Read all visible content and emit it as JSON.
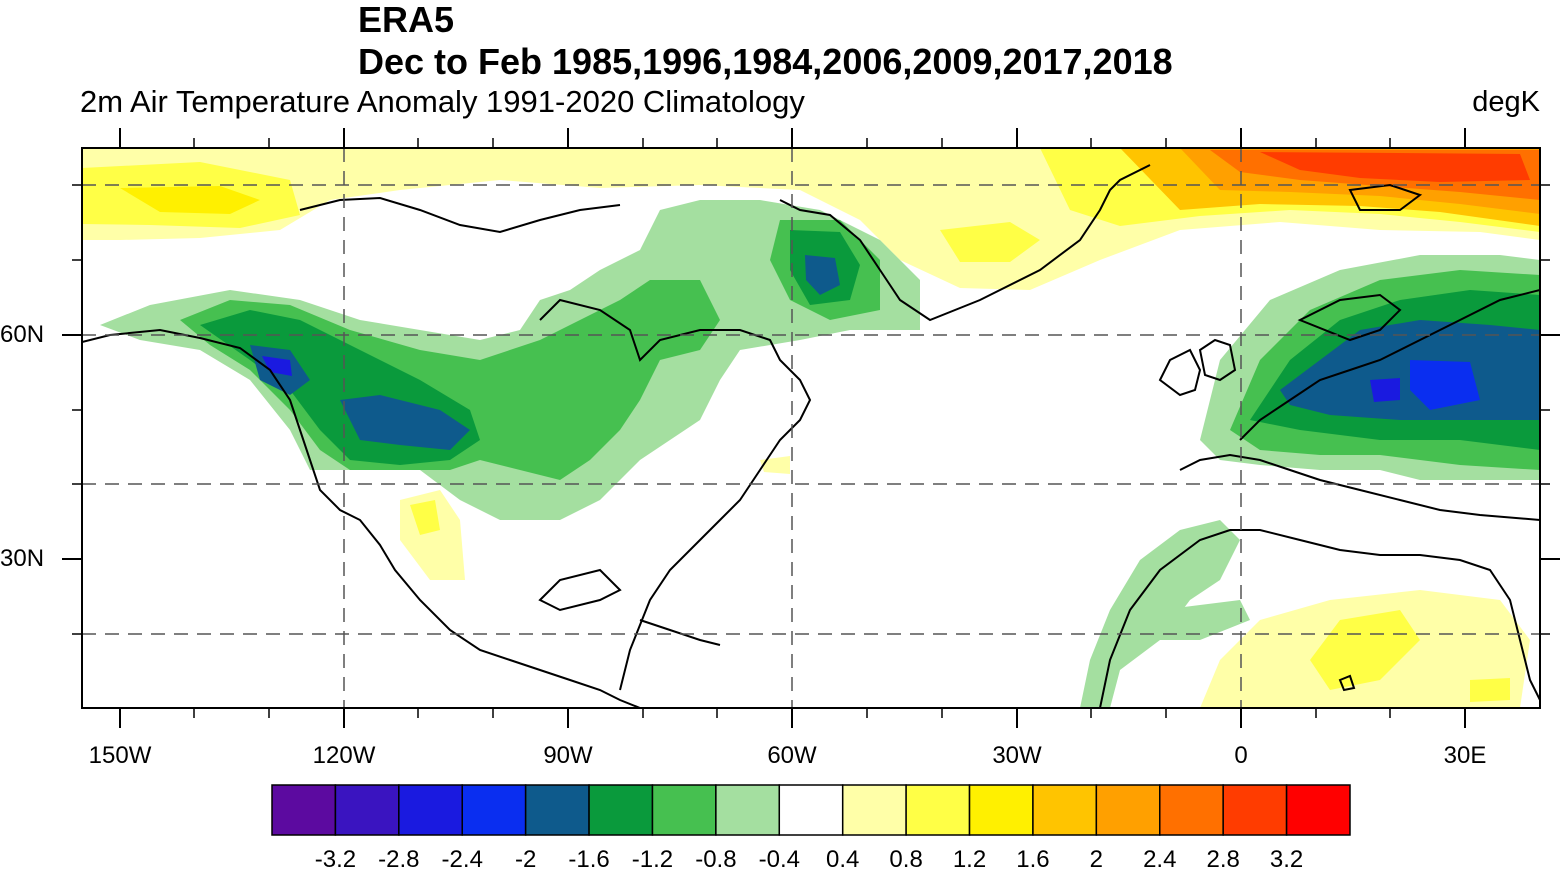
{
  "header": {
    "title_line1": "ERA5",
    "title_line2": "Dec to Feb 1985,1996,1984,2006,2009,2017,2018",
    "left_subtitle": "2m Air Temperature Anomaly  1991-2020 Climatology",
    "right_subtitle": "degK"
  },
  "map": {
    "longitude_labels": [
      "150W",
      "120W",
      "90W",
      "60W",
      "30W",
      "0",
      "30E"
    ],
    "latitude_labels": [
      "60N",
      "30N"
    ],
    "projection": "cylindrical equidistant",
    "gridlines": "dashed",
    "coastlines": true
  },
  "colorbar": {
    "labels": [
      "-3.2",
      "-2.8",
      "-2.4",
      "-2",
      "-1.6",
      "-1.2",
      "-0.8",
      "-0.4",
      "0.4",
      "0.8",
      "1.2",
      "1.6",
      "2",
      "2.4",
      "2.8",
      "3.2"
    ],
    "colors": [
      "#5c0aa0",
      "#3a14c0",
      "#1a1ae0",
      "#0a2ef0",
      "#0e5a8c",
      "#0a9a3c",
      "#46c050",
      "#a4dfa0",
      "#ffffff",
      "#ffffa8",
      "#ffff46",
      "#fff000",
      "#ffc400",
      "#ffa000",
      "#ff7000",
      "#ff3c00",
      "#ff0000"
    ]
  },
  "colors": {
    "land_outline": "#000000",
    "gridline": "#555555"
  }
}
